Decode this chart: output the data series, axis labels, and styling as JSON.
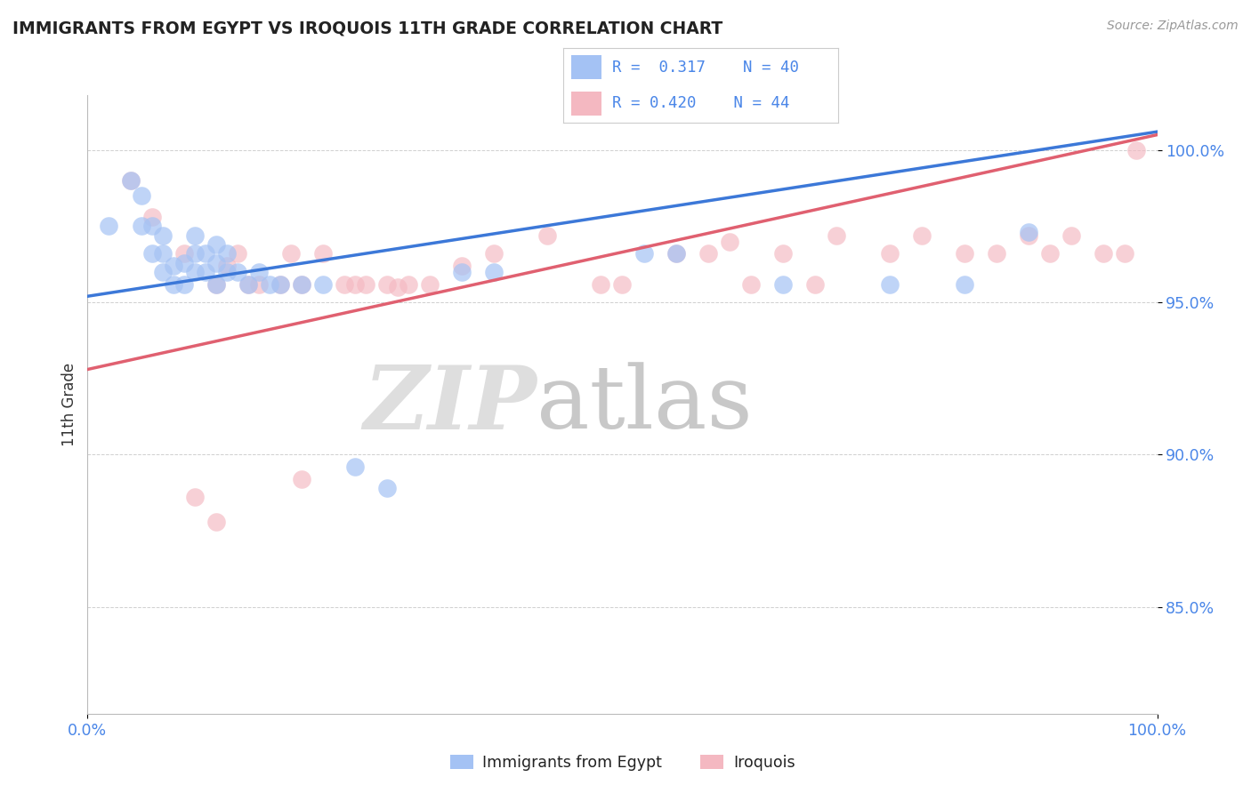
{
  "title": "IMMIGRANTS FROM EGYPT VS IROQUOIS 11TH GRADE CORRELATION CHART",
  "source": "Source: ZipAtlas.com",
  "ylabel": "11th Grade",
  "xlim": [
    0.0,
    1.0
  ],
  "ylim": [
    0.815,
    1.018
  ],
  "blue_color": "#a4c2f4",
  "pink_color": "#f4b8c1",
  "blue_line_color": "#3c78d8",
  "pink_line_color": "#e06070",
  "axis_label_color": "#4a86e8",
  "title_color": "#222222",
  "legend_blue_r": "0.317",
  "legend_blue_n": "40",
  "legend_pink_r": "0.420",
  "legend_pink_n": "44",
  "blue_scatter_x": [
    0.02,
    0.04,
    0.05,
    0.05,
    0.06,
    0.06,
    0.07,
    0.07,
    0.07,
    0.08,
    0.08,
    0.09,
    0.09,
    0.1,
    0.1,
    0.1,
    0.11,
    0.11,
    0.12,
    0.12,
    0.12,
    0.13,
    0.13,
    0.14,
    0.15,
    0.16,
    0.17,
    0.18,
    0.2,
    0.22,
    0.25,
    0.28,
    0.35,
    0.38,
    0.55,
    0.65,
    0.75,
    0.82,
    0.88,
    0.52
  ],
  "blue_scatter_y": [
    0.975,
    0.99,
    0.975,
    0.985,
    0.966,
    0.975,
    0.96,
    0.966,
    0.972,
    0.956,
    0.962,
    0.956,
    0.963,
    0.96,
    0.966,
    0.972,
    0.96,
    0.966,
    0.956,
    0.963,
    0.969,
    0.96,
    0.966,
    0.96,
    0.956,
    0.96,
    0.956,
    0.956,
    0.956,
    0.956,
    0.896,
    0.889,
    0.96,
    0.96,
    0.966,
    0.956,
    0.956,
    0.956,
    0.973,
    0.966
  ],
  "pink_scatter_x": [
    0.04,
    0.09,
    0.12,
    0.13,
    0.14,
    0.15,
    0.16,
    0.18,
    0.19,
    0.2,
    0.22,
    0.24,
    0.26,
    0.28,
    0.3,
    0.32,
    0.25,
    0.38,
    0.43,
    0.5,
    0.55,
    0.58,
    0.62,
    0.65,
    0.68,
    0.7,
    0.75,
    0.78,
    0.82,
    0.85,
    0.88,
    0.9,
    0.92,
    0.95,
    0.97,
    0.98,
    0.35,
    0.2,
    0.12,
    0.29,
    0.1,
    0.48,
    0.6,
    0.06
  ],
  "pink_scatter_y": [
    0.99,
    0.966,
    0.956,
    0.962,
    0.966,
    0.956,
    0.956,
    0.956,
    0.966,
    0.956,
    0.966,
    0.956,
    0.956,
    0.956,
    0.956,
    0.956,
    0.956,
    0.966,
    0.972,
    0.956,
    0.966,
    0.966,
    0.956,
    0.966,
    0.956,
    0.972,
    0.966,
    0.972,
    0.966,
    0.966,
    0.972,
    0.966,
    0.972,
    0.966,
    0.966,
    1.0,
    0.962,
    0.892,
    0.878,
    0.955,
    0.886,
    0.956,
    0.97,
    0.978
  ],
  "blue_line_x0": 0.0,
  "blue_line_x1": 1.0,
  "blue_line_y0": 0.952,
  "blue_line_y1": 1.006,
  "pink_line_x0": 0.0,
  "pink_line_x1": 1.0,
  "pink_line_y0": 0.928,
  "pink_line_y1": 1.005,
  "yticks": [
    0.85,
    0.9,
    0.95,
    1.0
  ],
  "ytick_labels": [
    "85.0%",
    "90.0%",
    "95.0%",
    "100.0%"
  ]
}
